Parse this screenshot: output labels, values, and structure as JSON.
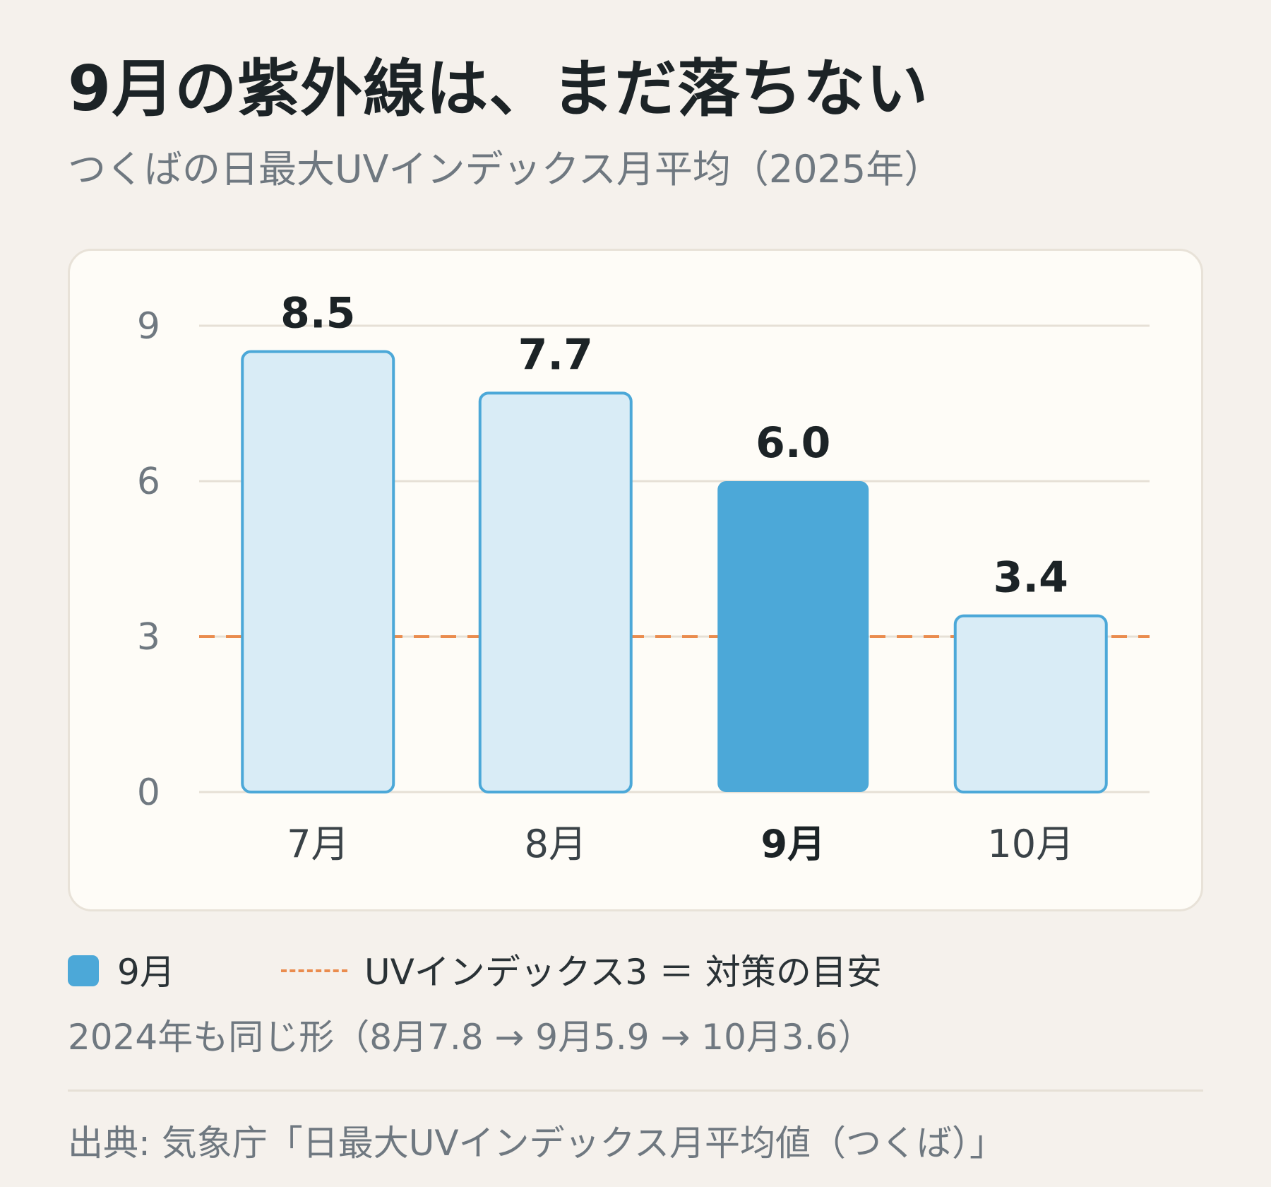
{
  "title": "9月の紫外線は、まだ落ちない",
  "subtitle": "つくばの日最大UVインデックス月平均（2025年）",
  "chart_data": {
    "type": "bar",
    "categories": [
      "7月",
      "8月",
      "9月",
      "10月"
    ],
    "values": [
      8.5,
      7.7,
      6.0,
      3.4
    ],
    "value_labels": [
      "8.5",
      "7.7",
      "6.0",
      "3.4"
    ],
    "highlight_category": "9月",
    "yticks": [
      0,
      3,
      6,
      9
    ],
    "ylim": [
      0,
      9
    ],
    "reference_line": {
      "value": 3
    },
    "grid": true,
    "colors": {
      "highlight_fill": "#4ca8d8",
      "bar_fill": "#d9ecf6",
      "bar_stroke": "#4ca8d8",
      "reference": "#ea8c4e",
      "grid": "#e6e0d6"
    }
  },
  "legend": {
    "highlight_label": "9月",
    "reference_label": "UVインデックス3 ＝ 対策の目安"
  },
  "note": "2024年も同じ形（8月7.8 → 9月5.9 → 10月3.6）",
  "source": "出典: 気象庁「日最大UVインデックス月平均値（つくば）」"
}
